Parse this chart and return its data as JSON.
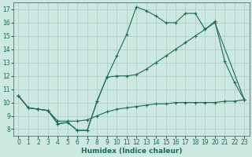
{
  "xlabel": "Humidex (Indice chaleur)",
  "background_color": "#cce8e0",
  "grid_color": "#aacccc",
  "line_color": "#1a6b5a",
  "xlim": [
    -0.5,
    23.5
  ],
  "ylim": [
    7.5,
    17.5
  ],
  "xticks": [
    0,
    1,
    2,
    3,
    4,
    5,
    6,
    7,
    8,
    9,
    10,
    11,
    12,
    13,
    14,
    15,
    16,
    17,
    18,
    19,
    20,
    21,
    22,
    23
  ],
  "yticks": [
    8,
    9,
    10,
    11,
    12,
    13,
    14,
    15,
    16,
    17
  ],
  "line1_x": [
    0,
    1,
    2,
    3,
    4,
    5,
    6,
    7,
    8,
    9,
    10,
    11,
    12,
    13,
    14,
    15,
    16,
    17,
    18,
    19,
    20,
    21,
    22,
    23
  ],
  "line1_y": [
    10.5,
    9.6,
    9.5,
    9.4,
    8.4,
    8.5,
    7.9,
    7.9,
    10.1,
    11.9,
    13.5,
    15.1,
    17.2,
    16.9,
    16.5,
    16.0,
    16.0,
    16.7,
    16.7,
    15.5,
    16.1,
    13.1,
    11.5,
    10.2
  ],
  "line2_x": [
    0,
    1,
    2,
    3,
    4,
    5,
    6,
    7,
    8,
    9,
    10,
    11,
    12,
    13,
    14,
    15,
    16,
    17,
    18,
    19,
    20,
    21,
    22,
    23
  ],
  "line2_y": [
    10.5,
    9.6,
    9.5,
    9.4,
    8.6,
    8.6,
    8.6,
    8.7,
    9.0,
    9.3,
    9.5,
    9.6,
    9.7,
    9.8,
    9.9,
    9.9,
    10.0,
    10.0,
    10.0,
    10.0,
    10.0,
    10.1,
    10.1,
    10.2
  ],
  "line3_x": [
    0,
    1,
    2,
    3,
    4,
    5,
    6,
    7,
    8,
    9,
    10,
    11,
    12,
    13,
    14,
    15,
    16,
    17,
    18,
    19,
    20,
    23
  ],
  "line3_y": [
    10.5,
    9.6,
    9.5,
    9.4,
    8.4,
    8.5,
    7.9,
    7.9,
    10.1,
    11.9,
    12.0,
    12.0,
    12.1,
    12.5,
    13.0,
    13.5,
    14.0,
    14.5,
    15.0,
    15.5,
    16.0,
    10.2
  ],
  "tick_fontsize": 5.5,
  "xlabel_fontsize": 6.5
}
